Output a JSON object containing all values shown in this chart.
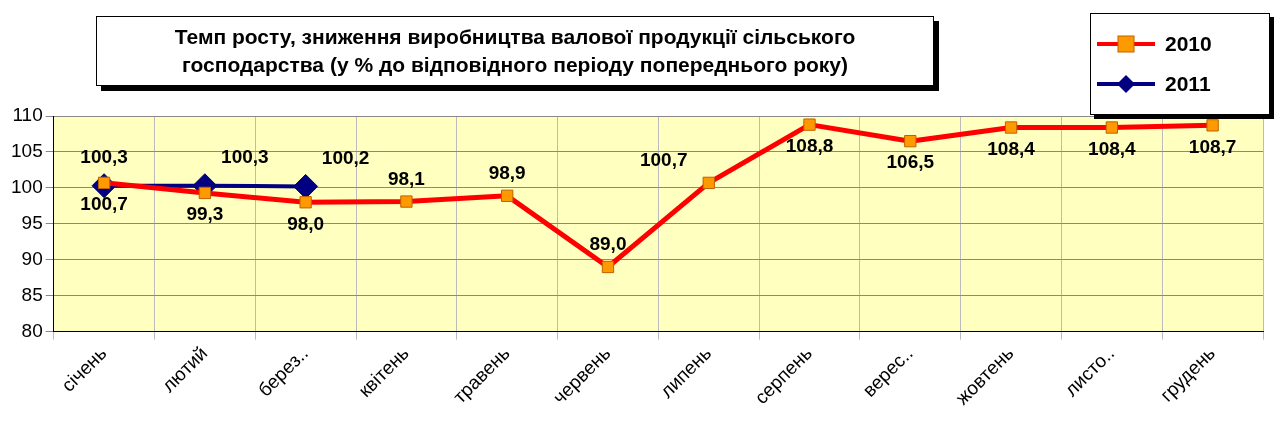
{
  "chart_data": {
    "type": "line",
    "title": "Темп росту, зниження виробництва валової продукції сільського господарства (у % до відповідного періоду попереднього року)",
    "categories": [
      "січень",
      "лютий",
      "берез..",
      "квітень",
      "травень",
      "червень",
      "липень",
      "серпень",
      "верес..",
      "жовтень",
      "листо..",
      "грудень"
    ],
    "series": [
      {
        "name": "2010",
        "color": "#ff0000",
        "marker": "square",
        "values": [
          100.7,
          99.3,
          98.0,
          98.1,
          98.9,
          89.0,
          100.7,
          108.8,
          106.5,
          108.4,
          108.4,
          108.7
        ],
        "value_labels": [
          "100,7",
          "99,3",
          "98,0",
          "98,1",
          "98,9",
          "89,0",
          "100,7",
          "108,8",
          "106,5",
          "108,4",
          "108,4",
          "108,7"
        ]
      },
      {
        "name": "2011",
        "color": "#000080",
        "marker": "diamond",
        "values": [
          100.3,
          100.3,
          100.2,
          null,
          null,
          null,
          null,
          null,
          null,
          null,
          null,
          null
        ],
        "value_labels": [
          "100,3",
          "100,3",
          "100,2",
          null,
          null,
          null,
          null,
          null,
          null,
          null,
          null,
          null
        ]
      }
    ],
    "ylim": [
      80,
      110
    ],
    "yticks": [
      80,
      85,
      90,
      95,
      100,
      105,
      110
    ],
    "grid": true,
    "legend": "top right"
  }
}
